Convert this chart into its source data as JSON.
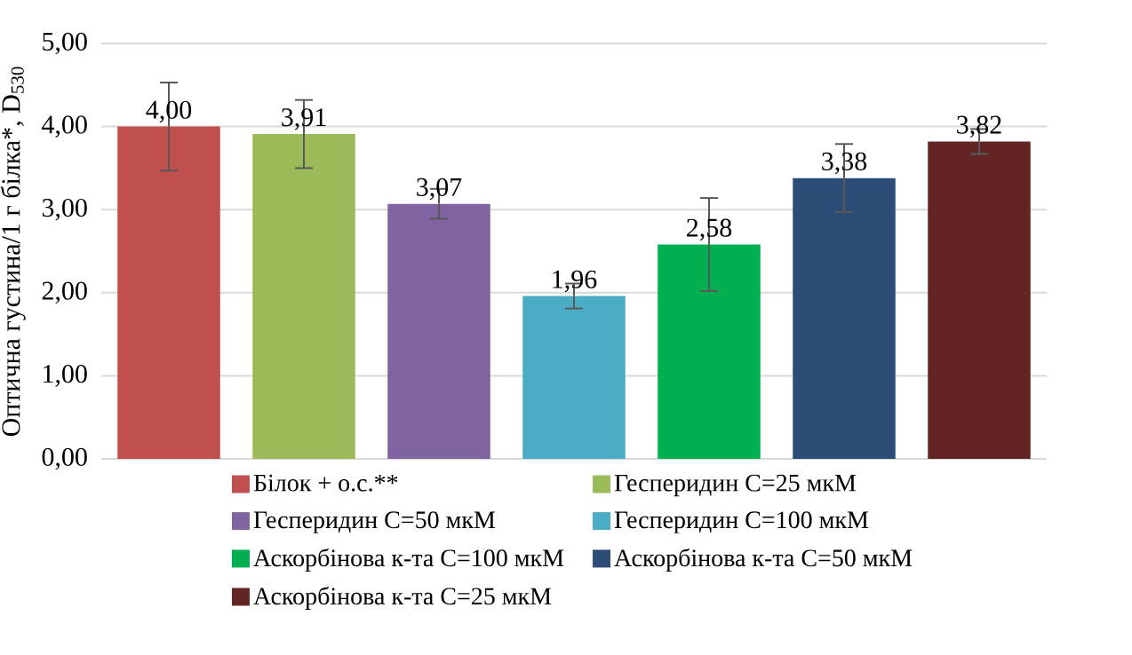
{
  "chart_data": {
    "type": "bar",
    "ylabel": "Оптична густина/1 г білка*, D$_{530}$",
    "categories": [
      null,
      null,
      null,
      null,
      null,
      null,
      null
    ],
    "series": [
      {
        "name": "Білок + о.с.**",
        "color": "#c0504d",
        "values": [
          4.0,
          null,
          null,
          null,
          null,
          null,
          null
        ],
        "errors": [
          0.53,
          null,
          null,
          null,
          null,
          null,
          null
        ],
        "value_labels": [
          "4,00",
          null,
          null,
          null,
          null,
          null,
          null
        ]
      },
      {
        "name": "Гесперидин С=25 мкМ",
        "color": "#9bbb59",
        "values": [
          null,
          3.91,
          null,
          null,
          null,
          null,
          null
        ],
        "errors": [
          null,
          0.41,
          null,
          null,
          null,
          null,
          null
        ],
        "value_labels": [
          null,
          "3,91",
          null,
          null,
          null,
          null,
          null
        ]
      },
      {
        "name": "Гесперидин С=50 мкМ",
        "color": "#8064a2",
        "values": [
          null,
          null,
          3.07,
          null,
          null,
          null,
          null
        ],
        "errors": [
          null,
          null,
          0.18,
          null,
          null,
          null,
          null
        ],
        "value_labels": [
          null,
          null,
          "3,07",
          null,
          null,
          null,
          null
        ]
      },
      {
        "name": "Гесперидин С=100 мкМ",
        "color": "#4bacc6",
        "values": [
          null,
          null,
          null,
          1.96,
          null,
          null,
          null
        ],
        "errors": [
          null,
          null,
          null,
          0.15,
          null,
          null,
          null
        ],
        "value_labels": [
          null,
          null,
          null,
          "1,96",
          null,
          null,
          null
        ]
      },
      {
        "name": "Аскорбінова к-та С=100 мкМ",
        "color": "#00b050",
        "values": [
          null,
          null,
          null,
          null,
          2.58,
          null,
          null
        ],
        "errors": [
          null,
          null,
          null,
          null,
          0.56,
          null,
          null
        ],
        "value_labels": [
          null,
          null,
          null,
          null,
          "2,58",
          null,
          null
        ]
      },
      {
        "name": "Аскорбінова к-та С=50 мкМ",
        "color": "#2c4d75",
        "values": [
          null,
          null,
          null,
          null,
          null,
          3.38,
          null
        ],
        "errors": [
          null,
          null,
          null,
          null,
          null,
          0.41,
          null
        ],
        "value_labels": [
          null,
          null,
          null,
          null,
          null,
          "3,38",
          null
        ]
      },
      {
        "name": "Аскорбінова к-та С=25 мкМ",
        "color": "#632523",
        "values": [
          null,
          null,
          null,
          null,
          null,
          null,
          3.82
        ],
        "errors": [
          null,
          null,
          null,
          null,
          null,
          null,
          0.15
        ],
        "value_labels": [
          null,
          null,
          null,
          null,
          null,
          null,
          "3,82"
        ]
      }
    ],
    "ylim": [
      0,
      5
    ],
    "yticks": [
      {
        "value": 0,
        "label": "0,00"
      },
      {
        "value": 1,
        "label": "1,00"
      },
      {
        "value": 2,
        "label": "2,00"
      },
      {
        "value": 3,
        "label": "3,00"
      },
      {
        "value": 4,
        "label": "4,00"
      },
      {
        "value": 5,
        "label": "5,00"
      }
    ],
    "grid": "y",
    "legend": "bottom"
  }
}
